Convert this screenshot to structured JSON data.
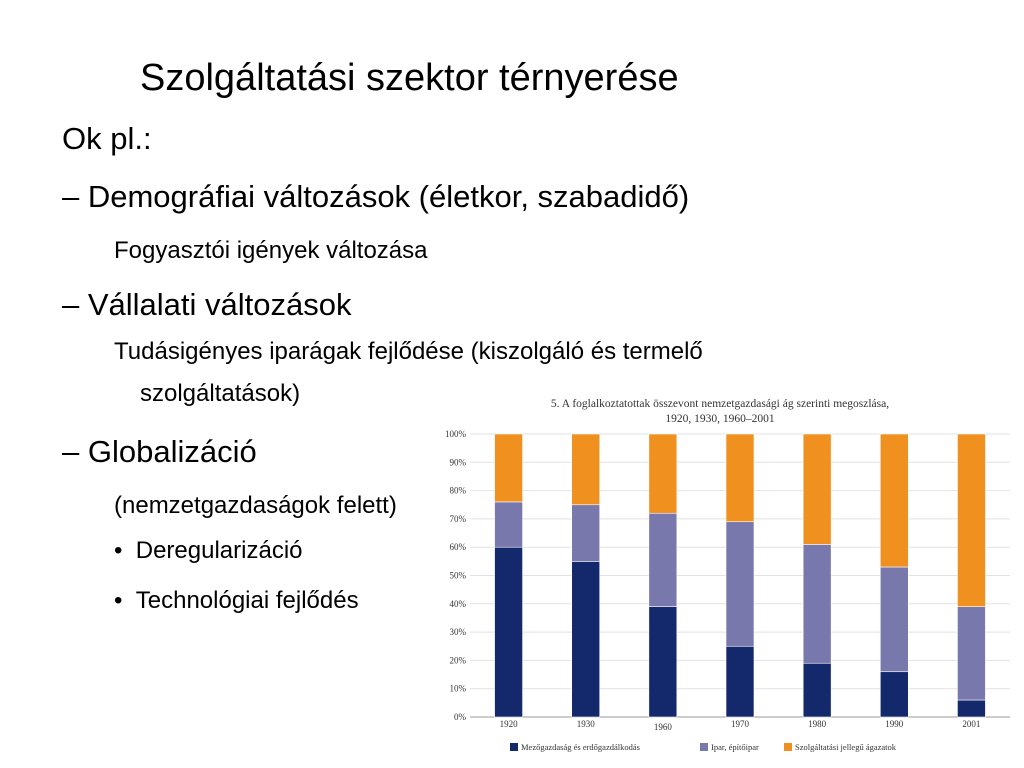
{
  "title": "Szolgáltatási szektor térnyerése",
  "intro": "Ok pl.:",
  "points": [
    {
      "text": "Demográfiai változások (életkor, szabadidő)",
      "sub": [
        "Fogyasztói igények változása"
      ]
    },
    {
      "text": "Vállalati változások",
      "sub": [
        "Tudásigényes iparágak fejlődése (kiszolgáló és termelő szolgáltatások)"
      ]
    },
    {
      "text": "Globalizáció",
      "sub": [
        "(nemzetgazdaságok felett)"
      ],
      "bullets": [
        "Deregularizáció",
        "Technológiai fejlődés"
      ]
    }
  ],
  "chart_data": {
    "type": "stacked-bar",
    "title": [
      "5. A foglalkoztatottak összevont nemzetgazdasági ág szerinti megoszlása,",
      "1920, 1930, 1960–2001"
    ],
    "categories": [
      "1920",
      "1930",
      "1960",
      "1970",
      "1980",
      "1990",
      "2001"
    ],
    "series": [
      {
        "name": "Mezőgazdaság és erdőgazdálkodás",
        "color": "#14296b",
        "values": [
          60,
          55,
          39,
          25,
          19,
          16,
          6
        ]
      },
      {
        "name": "Ipar, építőipar",
        "color": "#7878ac",
        "values": [
          16,
          20,
          33,
          44,
          42,
          37,
          33
        ]
      },
      {
        "name": "Szolgáltatási jellegű ágazatok",
        "color": "#ef901f",
        "values": [
          24,
          25,
          28,
          31,
          39,
          47,
          61
        ]
      }
    ],
    "ylim": [
      0,
      100
    ],
    "yticks": [
      {
        "value": 0,
        "label": "0%"
      },
      {
        "value": 10,
        "label": "10%"
      },
      {
        "value": 20,
        "label": "20%"
      },
      {
        "value": 30,
        "label": "30%"
      },
      {
        "value": 40,
        "label": "40%"
      },
      {
        "value": 50,
        "label": "50%"
      },
      {
        "value": 60,
        "label": "60%"
      },
      {
        "value": 70,
        "label": "70%"
      },
      {
        "value": 80,
        "label": "80%"
      },
      {
        "value": 90,
        "label": "90%"
      },
      {
        "value": 100,
        "label": "100%"
      }
    ],
    "grid": true
  }
}
